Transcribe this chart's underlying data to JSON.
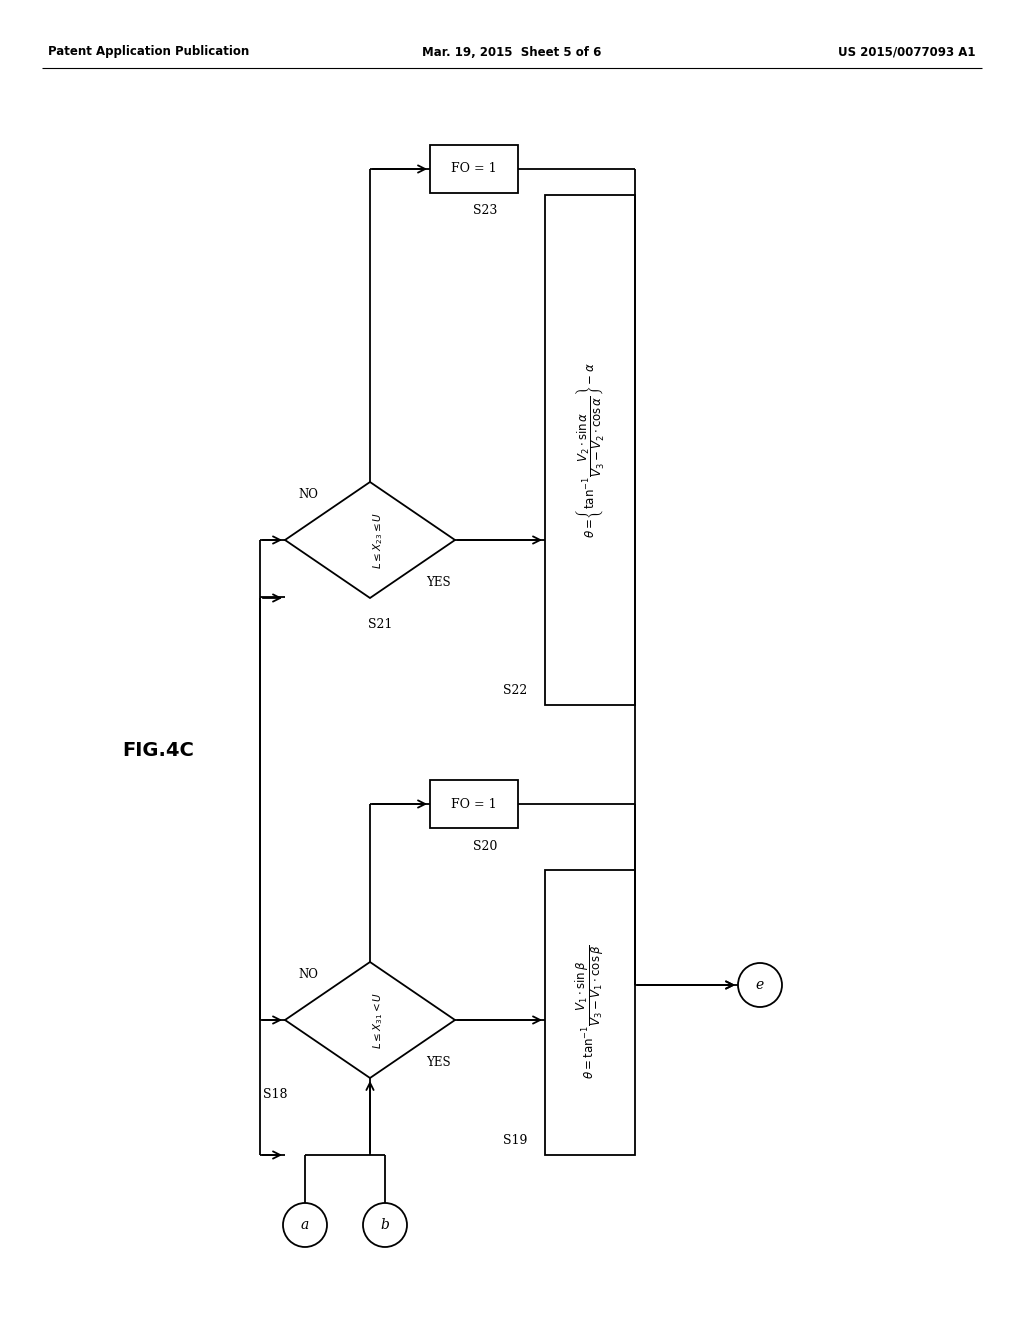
{
  "bg_color": "#ffffff",
  "header_left": "Patent Application Publication",
  "header_center": "Mar. 19, 2015  Sheet 5 of 6",
  "header_right": "US 2015/0077093 A1",
  "fig_label": "FIG.4C"
}
